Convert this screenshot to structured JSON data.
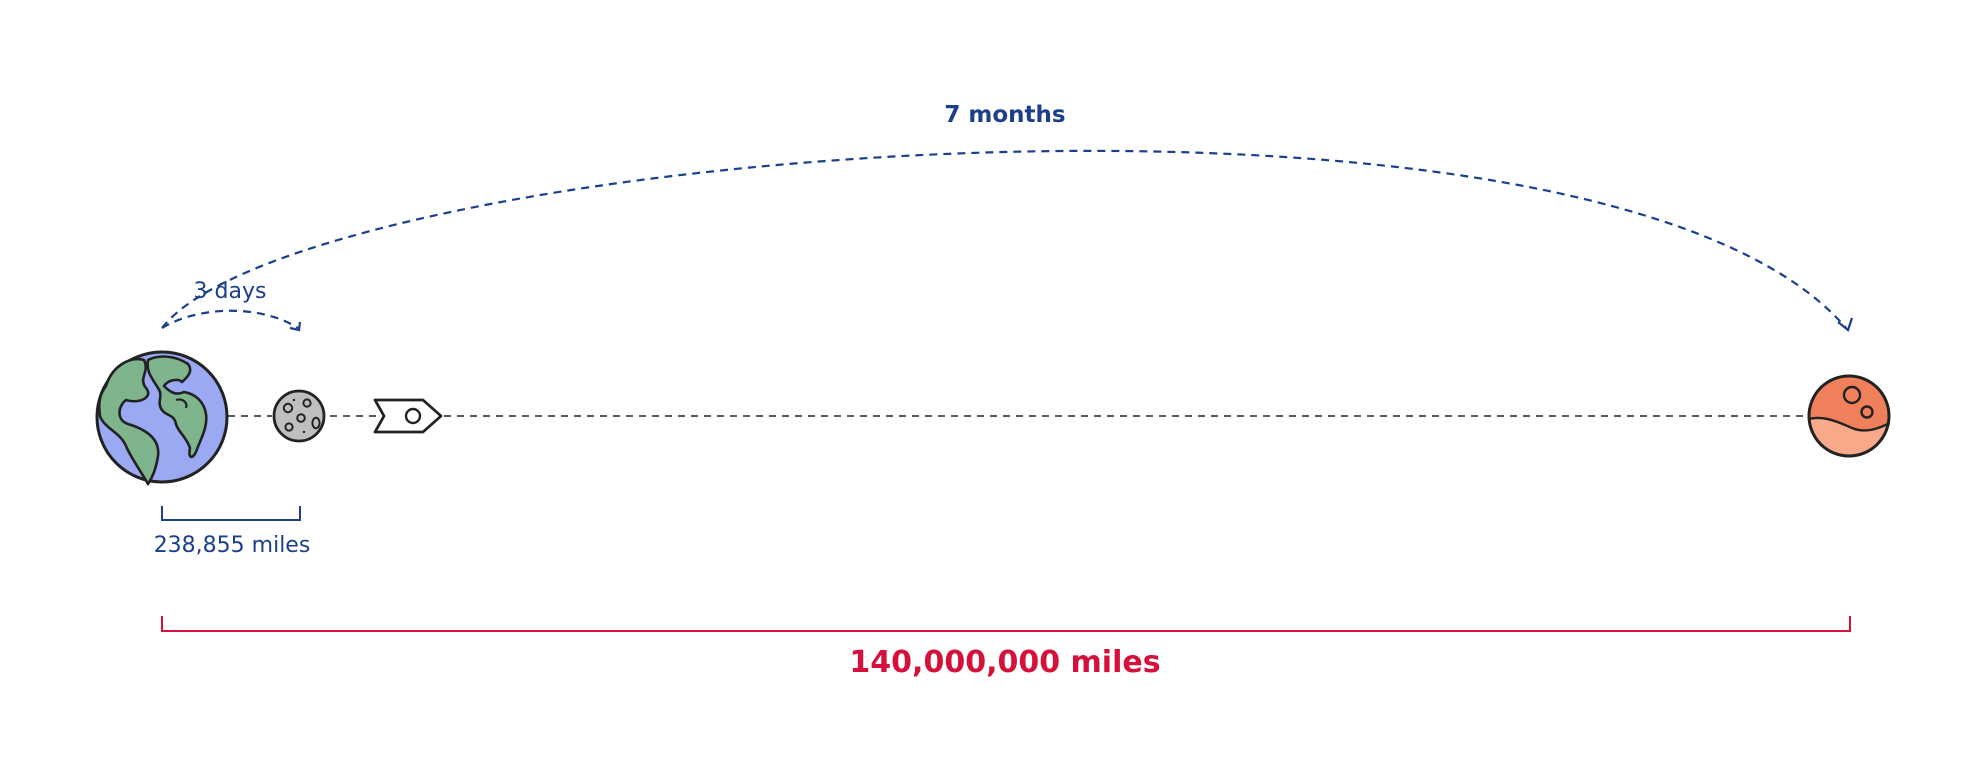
{
  "labels": {
    "earth_mars_travel_time": "7 months",
    "earth_moon_travel_time": "3 days",
    "earth_moon_distance": "238,855 miles",
    "earth_mars_distance": "140,000,000 miles"
  },
  "icons": {
    "earth": "earth-icon",
    "moon": "moon-icon",
    "rocket": "rocket-icon",
    "mars": "mars-icon"
  },
  "colors": {
    "annotation_blue": "#1b3f8b",
    "distance_red": "#d5103a",
    "earth_ocean": "#9ba8f2",
    "earth_land": "#7fb58c",
    "moon_gray": "#bfbfbf",
    "mars_orange": "#f0805c",
    "outline": "#222222"
  }
}
